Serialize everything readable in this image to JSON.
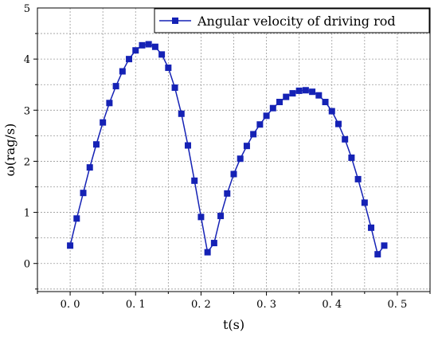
{
  "chart_data": {
    "type": "line",
    "xlabel": "t(s)",
    "ylabel": "ω(rag/s)",
    "xlim": [
      -0.05,
      0.55
    ],
    "ylim": [
      -0.55,
      5.0
    ],
    "xticks": [
      0.0,
      0.1,
      0.2,
      0.3,
      0.4,
      0.5
    ],
    "xtick_labels": [
      "0. 0",
      "0. 1",
      "0. 2",
      "0. 3",
      "0. 4",
      "0. 5"
    ],
    "yticks": [
      0,
      1,
      2,
      3,
      4,
      5
    ],
    "ytick_labels": [
      "0",
      "1",
      "2",
      "3",
      "4",
      "5"
    ],
    "grid": true,
    "legend_position": "top-right",
    "series_color": "#1522b5",
    "marker": "square",
    "series": [
      {
        "name": "Angular velocity of driving rod",
        "x": [
          0.0,
          0.01,
          0.02,
          0.03,
          0.04,
          0.05,
          0.06,
          0.07,
          0.08,
          0.09,
          0.1,
          0.11,
          0.12,
          0.13,
          0.14,
          0.15,
          0.16,
          0.17,
          0.18,
          0.19,
          0.2,
          0.21,
          0.22,
          0.23,
          0.24,
          0.25,
          0.26,
          0.27,
          0.28,
          0.29,
          0.3,
          0.31,
          0.32,
          0.33,
          0.34,
          0.35,
          0.36,
          0.37,
          0.38,
          0.39,
          0.4,
          0.41,
          0.42,
          0.43,
          0.44,
          0.45,
          0.46,
          0.47,
          0.48
        ],
        "values": [
          0.35,
          0.88,
          1.38,
          1.88,
          2.33,
          2.76,
          3.14,
          3.47,
          3.76,
          4.0,
          4.17,
          4.27,
          4.29,
          4.24,
          4.09,
          3.83,
          3.44,
          2.93,
          2.31,
          1.62,
          0.91,
          0.22,
          0.4,
          0.93,
          1.37,
          1.75,
          2.05,
          2.3,
          2.53,
          2.72,
          2.89,
          3.04,
          3.16,
          3.26,
          3.33,
          3.38,
          3.39,
          3.36,
          3.29,
          3.16,
          2.98,
          2.73,
          2.43,
          2.07,
          1.65,
          1.19,
          0.7,
          0.18,
          0.35
        ]
      }
    ]
  }
}
